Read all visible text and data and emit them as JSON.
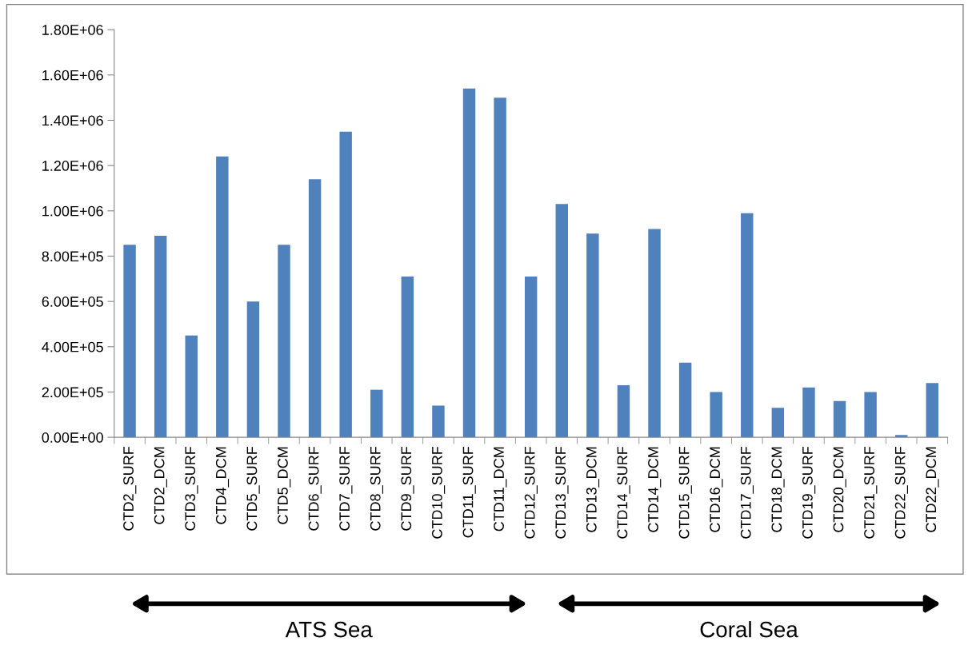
{
  "chart_data": {
    "type": "bar",
    "categories": [
      "CTD2_SURF",
      "CTD2_DCM",
      "CTD3_SURF",
      "CTD4_DCM",
      "CTD5_SURF",
      "CTD5_DCM",
      "CTD6_SURF",
      "CTD7_SURF",
      "CTD8_SURF",
      "CTD9_SURF",
      "CTD10_SURF",
      "CTD11_SURF",
      "CTD11_DCM",
      "CTD12_SURF",
      "CTD13_SURF",
      "CTD13_DCM",
      "CTD14_SURF",
      "CTD14_DCM",
      "CTD15_SURF",
      "CTD16_DCM",
      "CTD17_SURF",
      "CTD18_DCM",
      "CTD19_SURF",
      "CTD20_DCM",
      "CTD21_SURF",
      "CTD22_SURF",
      "CTD22_DCM"
    ],
    "values": [
      850000,
      890000,
      450000,
      1240000,
      600000,
      850000,
      1140000,
      1350000,
      210000,
      710000,
      140000,
      1540000,
      1500000,
      710000,
      1030000,
      900000,
      230000,
      920000,
      330000,
      200000,
      990000,
      130000,
      220000,
      160000,
      200000,
      10000,
      240000
    ],
    "color": "#4f81bd",
    "ylim": [
      0,
      1800000
    ],
    "yticks": [
      {
        "value": 0,
        "label": "0.00E+00"
      },
      {
        "value": 200000,
        "label": "2.00E+05"
      },
      {
        "value": 400000,
        "label": "4.00E+05"
      },
      {
        "value": 600000,
        "label": "6.00E+05"
      },
      {
        "value": 800000,
        "label": "8.00E+05"
      },
      {
        "value": 1000000,
        "label": "1.00E+06"
      },
      {
        "value": 1200000,
        "label": "1.20E+06"
      },
      {
        "value": 1400000,
        "label": "1.40E+06"
      },
      {
        "value": 1600000,
        "label": "1.60E+06"
      },
      {
        "value": 1800000,
        "label": "1.80E+06"
      }
    ],
    "annotations": [
      "ATS Sea",
      "Coral Sea"
    ],
    "grid": false
  }
}
